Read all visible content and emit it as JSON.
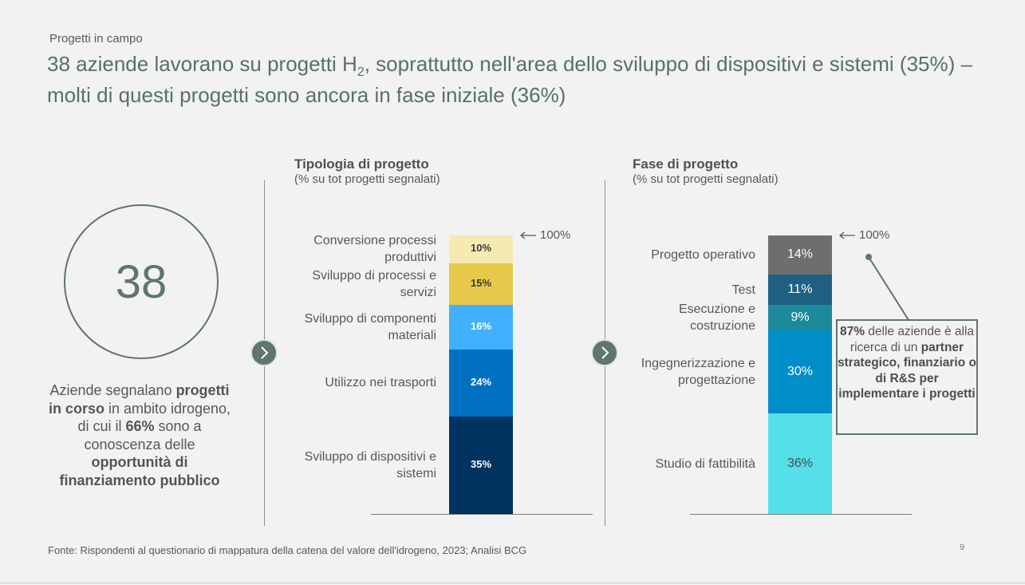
{
  "kicker": "Progetti in campo",
  "title": {
    "part1": "38 aziende lavorano su progetti H",
    "sub": "2",
    "part2": ", soprattutto nell'area dello sviluppo di dispositivi e sistemi (35%) – molti di questi progetti sono ancora in fase iniziale (36%)"
  },
  "kpi": {
    "value": "38",
    "text": {
      "t1": "Aziende segnalano ",
      "b1": "progetti in corso",
      "t2": " in ambito idrogeno, di cui il ",
      "b2": "66%",
      "t3": " sono a conoscenza delle ",
      "b3": "opportunità di finanziamento pubblico"
    }
  },
  "colors": {
    "accent": "#5f756f",
    "tipologia": [
      "#00335f",
      "#0070c0",
      "#41b0ff",
      "#e6c94a",
      "#f5eab2"
    ],
    "fase": [
      "#55dfe8",
      "#008ec8",
      "#1b8a9c",
      "#1f5f82",
      "#6e6e6e"
    ]
  },
  "icons": {
    "next": "chevron-right-icon",
    "arrow": "arrow-left-icon"
  },
  "chart_data": [
    {
      "type": "bar",
      "stacked": true,
      "title": "Tipologia di progetto",
      "subtitle": "(% su tot progetti segnalati)",
      "total_label": "100%",
      "unit": "%",
      "ylim": [
        0,
        100
      ],
      "categories": [
        "Sviluppo di dispositivi e sistemi",
        "Utilizzo nei trasporti",
        "Sviluppo di componenti materiali",
        "Sviluppo di processi e servizi",
        "Conversione processi produttivi"
      ],
      "values": [
        35,
        24,
        16,
        15,
        10
      ],
      "data_labels": [
        "35%",
        "24%",
        "16%",
        "15%",
        "10%"
      ]
    },
    {
      "type": "bar",
      "stacked": true,
      "title": "Fase di progetto",
      "subtitle": "(% su tot progetti segnalati)",
      "total_label": "100%",
      "unit": "%",
      "ylim": [
        0,
        100
      ],
      "categories": [
        "Studio di fattibilità",
        "Ingegnerizzazione e progettazione",
        "Esecuzione e costruzione",
        "Test",
        "Progetto operativo"
      ],
      "values": [
        36,
        30,
        9,
        11,
        14
      ],
      "data_labels": [
        "36%",
        "30%",
        "9%",
        "11%",
        "14%"
      ]
    }
  ],
  "callout": {
    "b1": "87%",
    "t1": " delle aziende è alla ricerca di un ",
    "b2": "partner strategico, finanziario o di R&S per implementare i progetti"
  },
  "footer": "Fonte: Rispondenti al questionario di mappatura della catena del valore dell'idrogeno, 2023; Analisi BCG",
  "page_number": "9"
}
